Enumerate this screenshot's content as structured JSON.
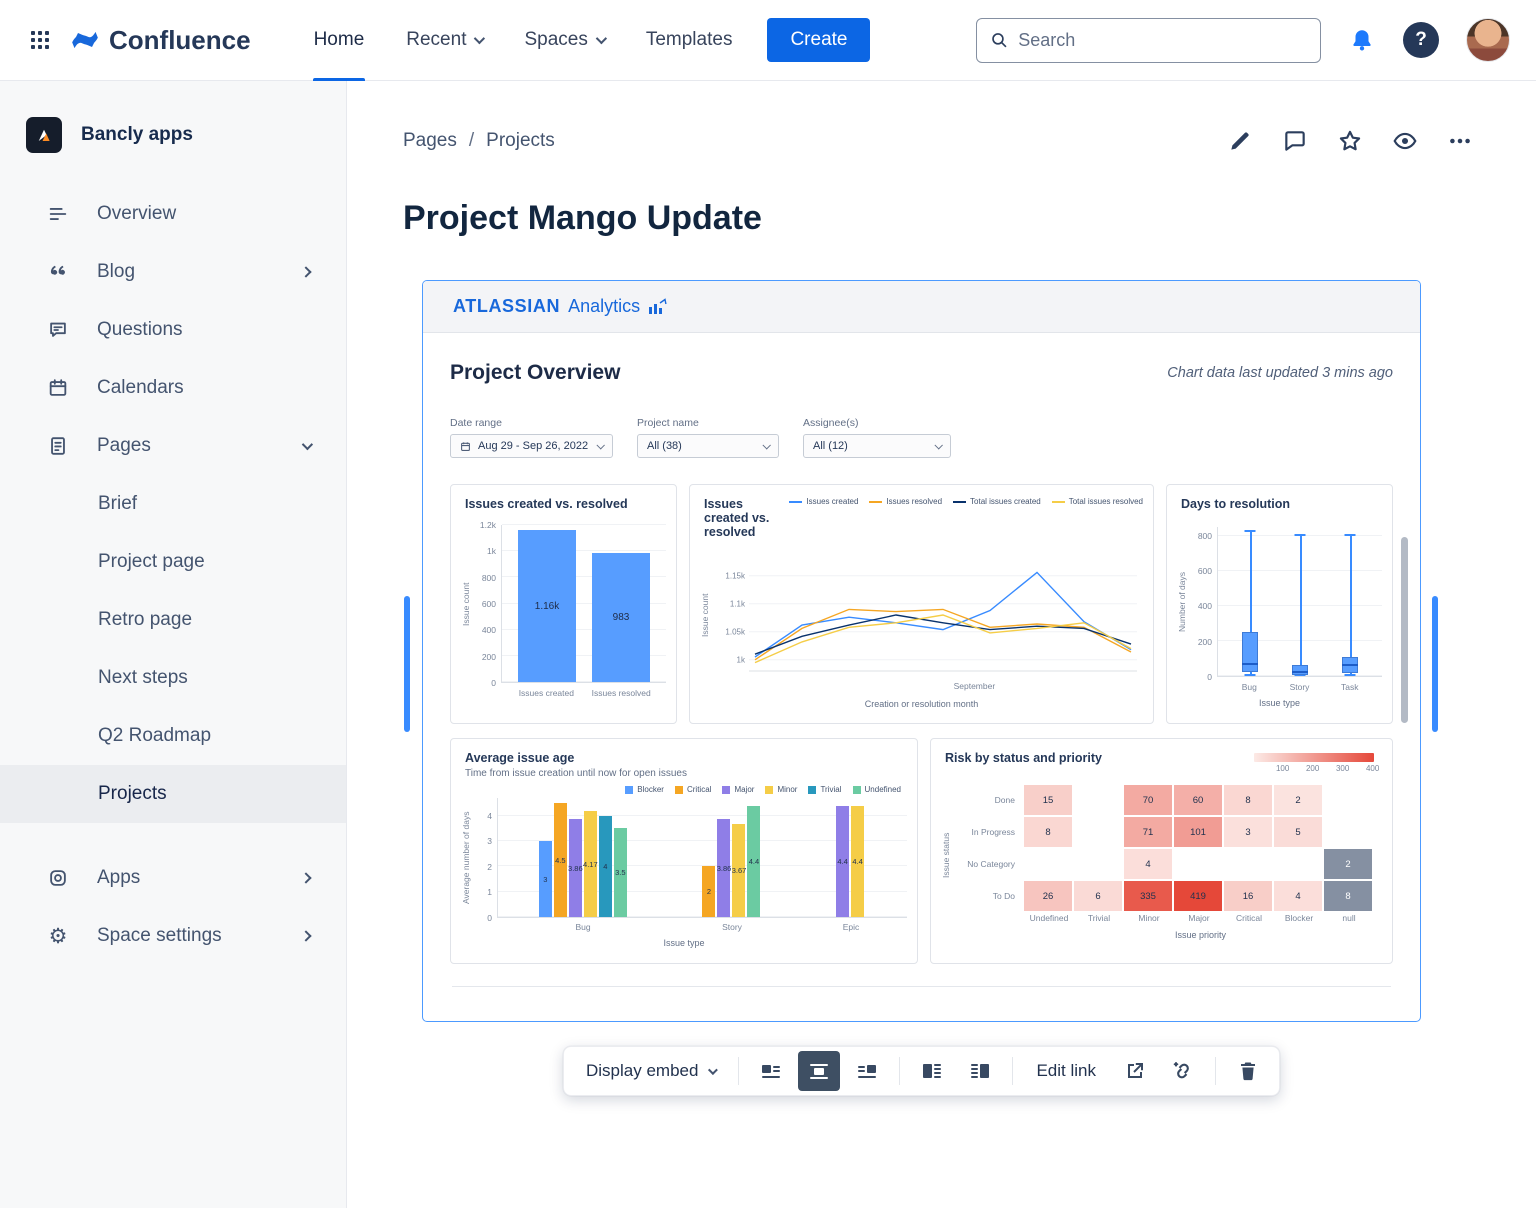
{
  "topbar": {
    "brand": "Confluence",
    "nav_items": [
      {
        "label": "Home",
        "active": true,
        "has_chevron": false
      },
      {
        "label": "Recent",
        "active": false,
        "has_chevron": true
      },
      {
        "label": "Spaces",
        "active": false,
        "has_chevron": true
      },
      {
        "label": "Templates",
        "active": false,
        "has_chevron": false
      }
    ],
    "create_label": "Create",
    "search_placeholder": "Search"
  },
  "sidebar": {
    "space_name": "Bancly apps",
    "items": [
      {
        "label": "Overview"
      },
      {
        "label": "Blog",
        "chevron": "right"
      },
      {
        "label": "Questions"
      },
      {
        "label": "Calendars"
      },
      {
        "label": "Pages",
        "chevron": "down"
      }
    ],
    "pages_children": [
      {
        "label": "Brief",
        "selected": false
      },
      {
        "label": "Project page",
        "selected": false
      },
      {
        "label": "Retro page",
        "selected": false
      },
      {
        "label": "Next steps",
        "selected": false
      },
      {
        "label": "Q2 Roadmap",
        "selected": false
      },
      {
        "label": "Projects",
        "selected": true
      }
    ],
    "footer_items": [
      {
        "label": "Apps",
        "chevron": "right"
      },
      {
        "label": "Space settings",
        "chevron": "right"
      }
    ]
  },
  "page": {
    "breadcrumb": [
      "Pages",
      "Projects"
    ],
    "title": "Project Mango Update"
  },
  "embed": {
    "brand_primary": "ATLASSIAN",
    "brand_secondary": "Analytics",
    "dashboard_title": "Project Overview",
    "updated_note": "Chart data last updated 3 mins ago",
    "filters": [
      {
        "label": "Date range",
        "value": "Aug 29 - Sep 26, 2022"
      },
      {
        "label": "Project name",
        "value": "All (38)"
      },
      {
        "label": "Assignee(s)",
        "value": "All (12)"
      }
    ]
  },
  "toolbar": {
    "display_embed_label": "Display embed",
    "edit_link_label": "Edit link"
  },
  "colors": {
    "accent_blue": "#0C66E4",
    "embed_border": "#4C9AFF",
    "bar_blue": "#579DFF",
    "heat_low": "#FCEAE6",
    "heat_high": "#E5483A",
    "heat_null_gray": "#8590A2"
  },
  "chart_data": [
    {
      "id": "issues-bar",
      "type": "bar",
      "title": "Issues created vs. resolved",
      "ylabel": "Issue count",
      "categories": [
        "Issues created",
        "Issues resolved"
      ],
      "values": [
        1160,
        983
      ],
      "value_labels": [
        "1.16k",
        "983"
      ],
      "ylim": [
        0,
        1200
      ],
      "yticks": [
        {
          "v": 0,
          "label": "0"
        },
        {
          "v": 200,
          "label": "200"
        },
        {
          "v": 400,
          "label": "400"
        },
        {
          "v": 600,
          "label": "600"
        },
        {
          "v": 800,
          "label": "800"
        },
        {
          "v": 1000,
          "label": "1k"
        },
        {
          "v": 1200,
          "label": "1.2k"
        }
      ],
      "bar_color": "#579DFF"
    },
    {
      "id": "issues-line",
      "type": "line",
      "title": "Issues created vs. resolved",
      "xlabel": "Creation or resolution month",
      "ylabel": "Issue count",
      "x_tick_labels": [
        "September"
      ],
      "ylim": [
        980,
        1180
      ],
      "yticks": [
        {
          "v": 1000,
          "label": "1k"
        },
        {
          "v": 1050,
          "label": "1.05k"
        },
        {
          "v": 1100,
          "label": "1.1k"
        },
        {
          "v": 1150,
          "label": "1.15k"
        }
      ],
      "series": [
        {
          "name": "Issues created",
          "color": "#388BFF",
          "values": [
            1005,
            1062,
            1076,
            1066,
            1054,
            1088,
            1156,
            1068,
            1018
          ]
        },
        {
          "name": "Issues resolved",
          "color": "#F5A623",
          "values": [
            1000,
            1056,
            1090,
            1086,
            1090,
            1058,
            1064,
            1058,
            1014
          ]
        },
        {
          "name": "Total issues created",
          "color": "#09326C",
          "values": [
            1010,
            1042,
            1062,
            1080,
            1066,
            1054,
            1060,
            1056,
            1028
          ]
        },
        {
          "name": "Total issues resolved",
          "color": "#F5CD47",
          "values": [
            995,
            1032,
            1058,
            1066,
            1080,
            1048,
            1056,
            1066,
            1020
          ]
        }
      ]
    },
    {
      "id": "days-to-resolution",
      "type": "boxplot",
      "title": "Days to resolution",
      "xlabel": "Issue type",
      "ylabel": "Number of days",
      "categories": [
        "Bug",
        "Story",
        "Task"
      ],
      "ylim": [
        0,
        850
      ],
      "yticks": [
        {
          "v": 0,
          "label": "0"
        },
        {
          "v": 200,
          "label": "200"
        },
        {
          "v": 400,
          "label": "400"
        },
        {
          "v": 600,
          "label": "600"
        },
        {
          "v": 800,
          "label": "800"
        }
      ],
      "boxes": [
        {
          "min": 0,
          "q1": 25,
          "median": 60,
          "q3": 250,
          "max": 820
        },
        {
          "min": 0,
          "q1": 5,
          "median": 20,
          "q3": 65,
          "max": 800
        },
        {
          "min": 0,
          "q1": 15,
          "median": 55,
          "q3": 110,
          "max": 800
        }
      ],
      "box_color": "#579DFF"
    },
    {
      "id": "average-issue-age",
      "type": "bar",
      "title": "Average issue age",
      "subtitle": "Time from issue creation until now for open issues",
      "xlabel": "Issue type",
      "ylabel": "Average number of days",
      "categories": [
        "Bug",
        "Story",
        "Epic"
      ],
      "ylim": [
        0,
        4.7
      ],
      "yticks": [
        0,
        1,
        2,
        3,
        4
      ],
      "series": [
        {
          "name": "Blocker",
          "color": "#579DFF",
          "values": [
            3,
            null,
            null
          ]
        },
        {
          "name": "Critical",
          "color": "#F5A623",
          "values": [
            4.5,
            2,
            null
          ]
        },
        {
          "name": "Major",
          "color": "#8F7EE7",
          "values": [
            3.86,
            3.86,
            4.4
          ]
        },
        {
          "name": "Minor",
          "color": "#F5CD47",
          "values": [
            4.17,
            3.67,
            4.4
          ]
        },
        {
          "name": "Trivial",
          "color": "#2898BD",
          "values": [
            4,
            null,
            null
          ]
        },
        {
          "name": "Undefined",
          "color": "#6BCBA2",
          "values": [
            3.5,
            4.4,
            null
          ]
        }
      ]
    },
    {
      "id": "risk-heatmap",
      "type": "heatmap",
      "title": "Risk by status and priority",
      "xlabel": "Issue priority",
      "ylabel": "Issue status",
      "columns": [
        "Undefined",
        "Trivial",
        "Minor",
        "Major",
        "Critical",
        "Blocker",
        "null"
      ],
      "rows": [
        "Done",
        "In Progress",
        "No Category",
        "To Do"
      ],
      "values": [
        [
          15,
          null,
          70,
          60,
          8,
          2,
          null
        ],
        [
          8,
          null,
          71,
          101,
          3,
          5,
          null
        ],
        [
          null,
          null,
          4,
          null,
          null,
          null,
          2
        ],
        [
          26,
          6,
          335,
          419,
          16,
          4,
          8
        ]
      ],
      "scale_ticks": [
        "100",
        "200",
        "300",
        "400"
      ],
      "scale_max": 419,
      "null_column_gray": true
    }
  ]
}
